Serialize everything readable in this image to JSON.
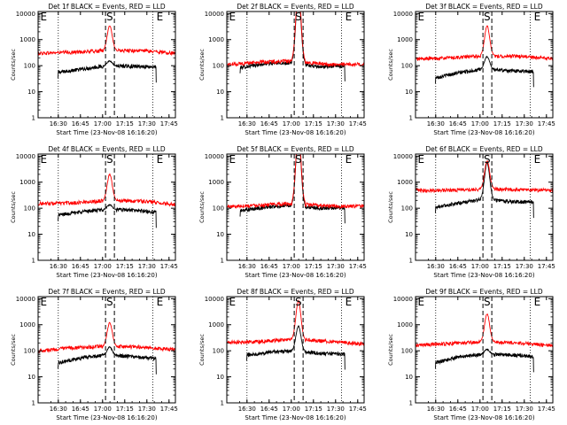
{
  "chart_data": {
    "type": "line",
    "layout": "3x3 grid of semilog-y count-rate panels",
    "ylabel": "Counts/sec",
    "xlabel": "Start Time (23-Nov-08 16:16:20)",
    "x_unit": "minutes after 16:16:20",
    "xlim": [
      0,
      93
    ],
    "ylim": [
      1,
      12000
    ],
    "y_scale": "log",
    "y_ticks": [
      1,
      10,
      100,
      1000,
      10000
    ],
    "y_tick_labels": [
      "1",
      "10",
      "100",
      "1000",
      "10000"
    ],
    "x_ticks": [
      13.67,
      28.67,
      43.67,
      58.67,
      73.67,
      88.67
    ],
    "x_tick_labels": [
      "16:30",
      "16:45",
      "17:00",
      "17:15",
      "17:30",
      "17:45"
    ],
    "dotted_markers_x": [
      13.67,
      77.67
    ],
    "dashed_markers_x": [
      45.67,
      51.67
    ],
    "interval_labels": [
      {
        "text": "E",
        "x": 1.5
      },
      {
        "text": "S",
        "x": 46.2
      },
      {
        "text": "E",
        "x": 80.2
      }
    ],
    "series_style": {
      "Events": {
        "color": "#000000"
      },
      "LLD": {
        "color": "#ff0000"
      }
    },
    "panels": [
      {
        "title": "Det 1f BLACK = Events, RED = LLD",
        "series": [
          {
            "name": "Events",
            "color": "#000000",
            "start": 13.5,
            "end": 80,
            "levels": [
              55,
              75,
              100,
              95,
              90
            ],
            "peak": 1.5
          },
          {
            "name": "LLD",
            "color": "#ff0000",
            "start": 0,
            "end": 93,
            "levels": [
              300,
              330,
              380,
              380,
              300
            ],
            "peak": 9
          }
        ]
      },
      {
        "title": "Det 2f BLACK = Events, RED = LLD",
        "series": [
          {
            "name": "Events",
            "color": "#000000",
            "start": 9,
            "end": 80,
            "levels": [
              85,
              120,
              130,
              90,
              100
            ],
            "peak": 600
          },
          {
            "name": "LLD",
            "color": "#ff0000",
            "start": 0,
            "end": 93,
            "levels": [
              110,
              140,
              150,
              110,
              115
            ],
            "peak": 700
          }
        ]
      },
      {
        "title": "Det 3f BLACK = Events, RED = LLD",
        "series": [
          {
            "name": "Events",
            "color": "#000000",
            "start": 13.5,
            "end": 80,
            "levels": [
              35,
              55,
              75,
              65,
              60
            ],
            "peak": 3
          },
          {
            "name": "LLD",
            "color": "#ff0000",
            "start": 0,
            "end": 93,
            "levels": [
              180,
              200,
              240,
              230,
              190
            ],
            "peak": 14
          }
        ]
      },
      {
        "title": "Det 4f BLACK = Events, RED = LLD",
        "series": [
          {
            "name": "Events",
            "color": "#000000",
            "start": 13.5,
            "end": 80,
            "levels": [
              55,
              75,
              90,
              85,
              70
            ],
            "peak": 1.5
          },
          {
            "name": "LLD",
            "color": "#ff0000",
            "start": 0,
            "end": 93,
            "levels": [
              150,
              160,
              200,
              190,
              140
            ],
            "peak": 10
          }
        ]
      },
      {
        "title": "Det 5f BLACK = Events, RED = LLD",
        "series": [
          {
            "name": "Events",
            "color": "#000000",
            "start": 9,
            "end": 80,
            "levels": [
              80,
              110,
              130,
              100,
              105
            ],
            "peak": 650
          },
          {
            "name": "LLD",
            "color": "#ff0000",
            "start": 0,
            "end": 93,
            "levels": [
              115,
              135,
              150,
              120,
              120
            ],
            "peak": 700
          }
        ]
      },
      {
        "title": "Det 6f BLACK = Events, RED = LLD",
        "series": [
          {
            "name": "Events",
            "color": "#000000",
            "start": 13.5,
            "end": 80,
            "levels": [
              110,
              160,
              230,
              180,
              170
            ],
            "peak": 25
          },
          {
            "name": "LLD",
            "color": "#ff0000",
            "start": 0,
            "end": 93,
            "levels": [
              480,
              500,
              550,
              520,
              480
            ],
            "peak": 12
          }
        ]
      },
      {
        "title": "Det 7f BLACK = Events, RED = LLD",
        "series": [
          {
            "name": "Events",
            "color": "#000000",
            "start": 13.5,
            "end": 80,
            "levels": [
              35,
              55,
              70,
              60,
              50
            ],
            "peak": 2
          },
          {
            "name": "LLD",
            "color": "#ff0000",
            "start": 0,
            "end": 93,
            "levels": [
              100,
              130,
              150,
              140,
              110
            ],
            "peak": 8
          }
        ]
      },
      {
        "title": "Det 8f BLACK = Events, RED = LLD",
        "series": [
          {
            "name": "Events",
            "color": "#000000",
            "start": 13.5,
            "end": 80,
            "levels": [
              70,
              90,
              100,
              80,
              75
            ],
            "peak": 9
          },
          {
            "name": "LLD",
            "color": "#ff0000",
            "start": 0,
            "end": 93,
            "levels": [
              210,
              230,
              280,
              230,
              180
            ],
            "peak": 30
          }
        ]
      },
      {
        "title": "Det 9f BLACK = Events, RED = LLD",
        "series": [
          {
            "name": "Events",
            "color": "#000000",
            "start": 13.5,
            "end": 80,
            "levels": [
              35,
              60,
              75,
              70,
              60
            ],
            "peak": 1.5
          },
          {
            "name": "LLD",
            "color": "#ff0000",
            "start": 0,
            "end": 93,
            "levels": [
              160,
              190,
              220,
              200,
              160
            ],
            "peak": 12
          }
        ]
      }
    ]
  }
}
